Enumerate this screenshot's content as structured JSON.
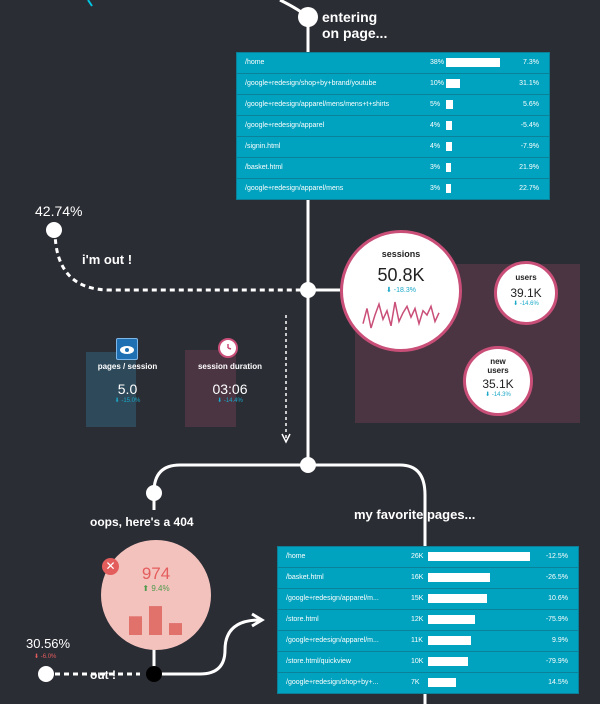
{
  "top_label": "entering\non page...",
  "entering_rows": [
    {
      "path": "/home",
      "count": "38%",
      "bar": 0.9,
      "change": "7.3%"
    },
    {
      "path": "/google+redesign/shop+by+brand/youtube",
      "count": "10%",
      "bar": 0.24,
      "change": "31.1%"
    },
    {
      "path": "/google+redesign/apparel/mens/mens+t+shirts",
      "count": "5%",
      "bar": 0.12,
      "change": "5.6%"
    },
    {
      "path": "/google+redesign/apparel",
      "count": "4%",
      "bar": 0.1,
      "change": "-5.4%"
    },
    {
      "path": "/signin.html",
      "count": "4%",
      "bar": 0.1,
      "change": "-7.9%"
    },
    {
      "path": "/basket.html",
      "count": "3%",
      "bar": 0.08,
      "change": "21.9%"
    },
    {
      "path": "/google+redesign/apparel/mens",
      "count": "3%",
      "bar": 0.08,
      "change": "22.7%"
    }
  ],
  "exit_left": {
    "percent": "42.74%",
    "label": "i'm out !"
  },
  "sessions": {
    "title": "sessions",
    "value": "50.8K",
    "change": "⬇ -18.3%",
    "spark": [
      5,
      12,
      3,
      9,
      14,
      7,
      11,
      4,
      15,
      6,
      10,
      13,
      8,
      12,
      5,
      11,
      9,
      13,
      6,
      10
    ]
  },
  "users": {
    "title": "users",
    "value": "39.1K",
    "change": "⬇ -14.6%"
  },
  "new_users": {
    "title": "new\nusers",
    "value": "35.1K",
    "change": "⬇ -14.3%"
  },
  "pages_session": {
    "title": "pages / session",
    "value": "5.0",
    "change": "⬇ -15.0%",
    "icon": "eye-icon"
  },
  "session_duration": {
    "title": "session duration",
    "value": "03:06",
    "change": "⬇ -14.4%",
    "icon": "clock-icon"
  },
  "error404": {
    "label": "oops, here's a 404",
    "value": "974",
    "change": "⬆ 9.4%",
    "icon": "close-icon",
    "bars": [
      0.55,
      0.85,
      0.35
    ]
  },
  "exit_bottom": {
    "percent": "30.56%",
    "change": "⬇ -6.0%",
    "label": "out !"
  },
  "favorite_label": "my favorite pages...",
  "favorite_rows": [
    {
      "path": "/home",
      "count": "26K",
      "bar": 0.85,
      "change": "-12.5%"
    },
    {
      "path": "/basket.html",
      "count": "16K",
      "bar": 0.52,
      "change": "-26.5%"
    },
    {
      "path": "/google+redesign/apparel/m...",
      "count": "15K",
      "bar": 0.49,
      "change": "10.6%"
    },
    {
      "path": "/store.html",
      "count": "12K",
      "bar": 0.39,
      "change": "-75.9%"
    },
    {
      "path": "/google+redesign/apparel/m...",
      "count": "11K",
      "bar": 0.36,
      "change": "9.9%"
    },
    {
      "path": "/store.html/quickview",
      "count": "10K",
      "bar": 0.33,
      "change": "-79.9%"
    },
    {
      "path": "/google+redesign/shop+by+...",
      "count": "7K",
      "bar": 0.23,
      "change": "14.5%"
    }
  ],
  "colors": {
    "teal": "#00a3bf",
    "pink": "#c94f78",
    "bg": "#2b2d35",
    "salmon": "#f4c2bd",
    "red": "#e35d5d"
  }
}
